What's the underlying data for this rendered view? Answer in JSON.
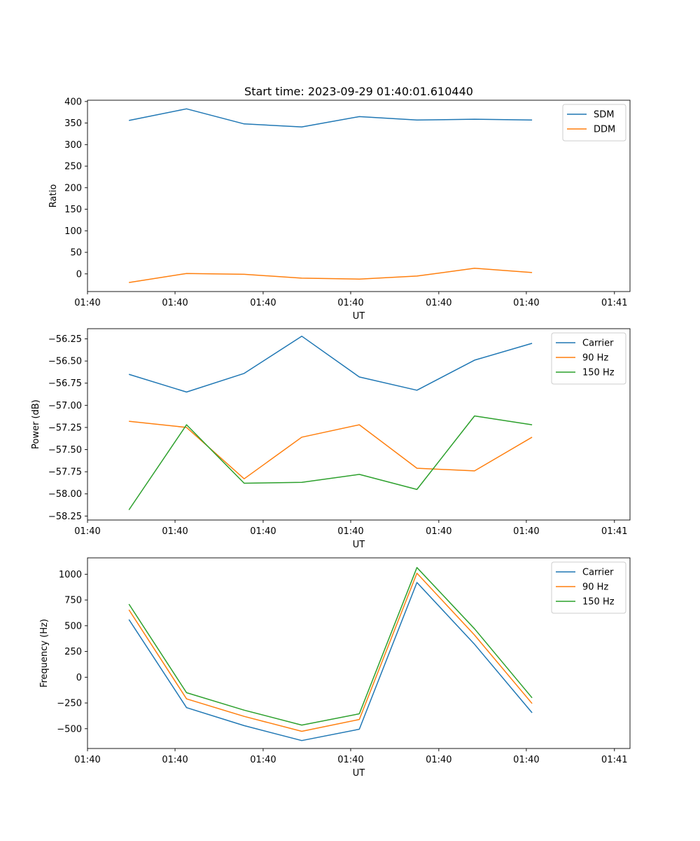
{
  "title": "Start time: 2023-09-29 01:40:01.610440",
  "chart_data": [
    {
      "type": "line",
      "ylabel": "Ratio",
      "xlabel": "UT",
      "x": [
        0,
        1,
        2,
        3,
        4,
        5,
        6,
        7
      ],
      "xlim": [
        -0.72,
        8.7
      ],
      "xticks": [
        -0.72,
        0.8,
        2.33,
        3.85,
        5.38,
        6.9,
        8.43
      ],
      "xtick_labels": [
        "01:40",
        "01:40",
        "01:40",
        "01:40",
        "01:40",
        "01:40",
        "01:41"
      ],
      "ylim": [
        -41,
        403
      ],
      "yticks": [
        0,
        50,
        100,
        150,
        200,
        250,
        300,
        350,
        400
      ],
      "ytick_labels": [
        "0",
        "50",
        "100",
        "150",
        "200",
        "250",
        "300",
        "350",
        "400"
      ],
      "legend": "top-right",
      "series": [
        {
          "name": "SDM",
          "color": "#1f77b4",
          "values": [
            356,
            383,
            348,
            341,
            365,
            357,
            359,
            357
          ]
        },
        {
          "name": "DDM",
          "color": "#ff7f0e",
          "values": [
            -20,
            1,
            -1,
            -10,
            -12,
            -5,
            13,
            3
          ]
        }
      ]
    },
    {
      "type": "line",
      "ylabel": "Power (dB)",
      "xlabel": "UT",
      "x": [
        0,
        1,
        2,
        3,
        4,
        5,
        6,
        7
      ],
      "xlim": [
        -0.72,
        8.7
      ],
      "xticks": [
        -0.72,
        0.8,
        2.33,
        3.85,
        5.38,
        6.9,
        8.43
      ],
      "xtick_labels": [
        "01:40",
        "01:40",
        "01:40",
        "01:40",
        "01:40",
        "01:40",
        "01:41"
      ],
      "ylim": [
        -58.295,
        -56.135
      ],
      "yticks": [
        -58.25,
        -58.0,
        -57.75,
        -57.5,
        -57.25,
        -57.0,
        -56.75,
        -56.5,
        -56.25
      ],
      "ytick_labels": [
        "−58.25",
        "−58.00",
        "−57.75",
        "−57.50",
        "−57.25",
        "−57.00",
        "−56.75",
        "−56.50",
        "−56.25"
      ],
      "legend": "top-right",
      "series": [
        {
          "name": "Carrier",
          "color": "#1f77b4",
          "values": [
            -56.65,
            -56.85,
            -56.64,
            -56.22,
            -56.68,
            -56.83,
            -56.49,
            -56.3
          ]
        },
        {
          "name": "90 Hz",
          "color": "#ff7f0e",
          "values": [
            -57.18,
            -57.25,
            -57.83,
            -57.36,
            -57.22,
            -57.71,
            -57.74,
            -57.36
          ]
        },
        {
          "name": "150 Hz",
          "color": "#2ca02c",
          "values": [
            -58.18,
            -57.22,
            -57.88,
            -57.87,
            -57.78,
            -57.95,
            -57.12,
            -57.22
          ]
        }
      ]
    },
    {
      "type": "line",
      "ylabel": "Frequency (Hz)",
      "xlabel": "UT",
      "x": [
        0,
        1,
        2,
        3,
        4,
        5,
        6,
        7
      ],
      "xlim": [
        -0.72,
        8.7
      ],
      "xticks": [
        -0.72,
        0.8,
        2.33,
        3.85,
        5.38,
        6.9,
        8.43
      ],
      "xtick_labels": [
        "01:40",
        "01:40",
        "01:40",
        "01:40",
        "01:40",
        "01:40",
        "01:41"
      ],
      "ylim": [
        -692,
        1159
      ],
      "yticks": [
        -500,
        -250,
        0,
        250,
        500,
        750,
        1000
      ],
      "ytick_labels": [
        "−500",
        "−250",
        "0",
        "250",
        "500",
        "750",
        "1000"
      ],
      "legend": "top-right",
      "series": [
        {
          "name": "Carrier",
          "color": "#1f77b4",
          "values": [
            560,
            -295,
            -470,
            -615,
            -505,
            920,
            320,
            -345
          ]
        },
        {
          "name": "90 Hz",
          "color": "#ff7f0e",
          "values": [
            655,
            -210,
            -380,
            -525,
            -410,
            1010,
            410,
            -255
          ]
        },
        {
          "name": "150 Hz",
          "color": "#2ca02c",
          "values": [
            710,
            -150,
            -320,
            -465,
            -355,
            1065,
            470,
            -200
          ]
        }
      ]
    }
  ]
}
